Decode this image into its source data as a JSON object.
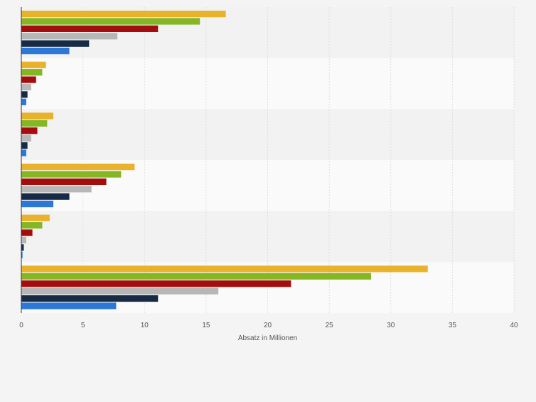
{
  "chart_data": {
    "type": "bar",
    "orientation": "horizontal",
    "title": "",
    "xlabel": "Absatz in Millionen",
    "ylabel": "",
    "xlim": [
      0,
      40
    ],
    "x_ticks": [
      0,
      5,
      10,
      15,
      20,
      25,
      30,
      35,
      40
    ],
    "grid": true,
    "legend": "none visible",
    "categories": [
      "",
      "",
      "",
      "",
      "",
      ""
    ],
    "series": [
      {
        "name": "",
        "color": "#e8b22a",
        "values": [
          16.6,
          2.0,
          2.6,
          9.2,
          2.3,
          33.0
        ]
      },
      {
        "name": "",
        "color": "#85b623",
        "values": [
          14.5,
          1.7,
          2.1,
          8.1,
          1.7,
          28.4
        ]
      },
      {
        "name": "",
        "color": "#a30d0d",
        "values": [
          11.1,
          1.2,
          1.3,
          6.9,
          0.9,
          21.9
        ]
      },
      {
        "name": "",
        "color": "#b7b7b7",
        "values": [
          7.8,
          0.8,
          0.8,
          5.7,
          0.4,
          16.0
        ]
      },
      {
        "name": "",
        "color": "#172b45",
        "values": [
          5.5,
          0.5,
          0.5,
          3.9,
          0.2,
          11.1
        ]
      },
      {
        "name": "",
        "color": "#2d77d6",
        "values": [
          3.9,
          0.4,
          0.4,
          2.6,
          0.1,
          7.7
        ]
      }
    ]
  }
}
